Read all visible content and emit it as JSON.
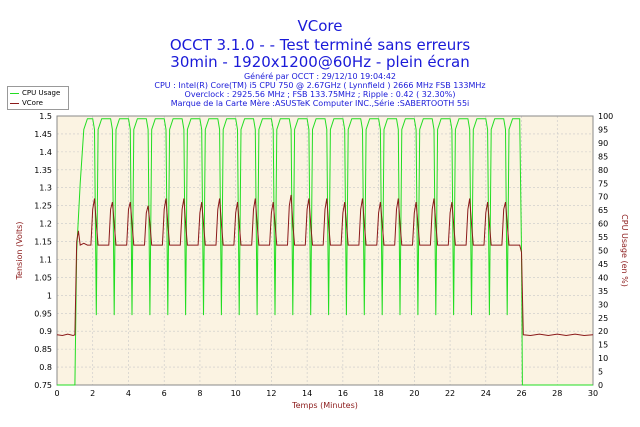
{
  "header": {
    "title": "VCore",
    "subtitle1": "OCCT 3.1.0 -  - Test terminé sans erreurs",
    "subtitle2": "30min - 1920x1200@60Hz - plein écran",
    "info": [
      "Généré par OCCT : 29/12/10 19:04:42",
      "CPU : Intel(R) Core(TM) i5 CPU 750 @ 2.67GHz ( Lynnfield ) 2666 MHz FSB 133MHz",
      "Overclock : 2925.56 MHz ; FSB 133.75MHz ; Ripple : 0.42 ( 32.30%)",
      "Marque de la Carte Mère :ASUSTeK Computer INC.,Série :SABERTOOTH 55i"
    ]
  },
  "colors": {
    "cpu": "#22dd22",
    "vcore": "#8b1a1a",
    "title": "#1a1ad8",
    "plot_bg": "#fbf3e2",
    "grid": "#c8c8c8"
  },
  "chart_data": {
    "type": "line",
    "xlabel": "Temps (Minutes)",
    "ylabel_left": "Tension (Volts)",
    "ylabel_right": "CPU Usage (en %)",
    "xlim": [
      0,
      30
    ],
    "ylim_left": [
      0.75,
      1.5
    ],
    "ylim_right": [
      0,
      100
    ],
    "x_ticks": [
      "0",
      "2",
      "4",
      "6",
      "8",
      "10",
      "12",
      "14",
      "16",
      "18",
      "20",
      "22",
      "24",
      "26",
      "28",
      "30"
    ],
    "y_ticks_left": [
      "0.75",
      "0.8",
      "0.85",
      "0.9",
      "0.95",
      "1",
      "1.05",
      "1.1",
      "1.15",
      "1.2",
      "1.25",
      "1.3",
      "1.35",
      "1.4",
      "1.45",
      "1.5"
    ],
    "y_ticks_right": [
      "0",
      "5",
      "10",
      "15",
      "20",
      "25",
      "30",
      "35",
      "40",
      "45",
      "50",
      "55",
      "60",
      "65",
      "70",
      "75",
      "80",
      "85",
      "90",
      "95",
      "100"
    ],
    "grid": true,
    "legend": {
      "position": "top-left",
      "entries": [
        "CPU Usage",
        "VCore"
      ]
    },
    "series": [
      {
        "name": "CPU Usage",
        "axis": "right",
        "points": [
          [
            0.0,
            0
          ],
          [
            1.0,
            0
          ],
          [
            1.1,
            50
          ],
          [
            1.3,
            75
          ],
          [
            1.5,
            95
          ],
          [
            1.7,
            99
          ],
          [
            2.0,
            99
          ],
          [
            2.1,
            95
          ],
          [
            2.2,
            26
          ],
          [
            2.3,
            95
          ],
          [
            2.5,
            99
          ],
          [
            3.0,
            99
          ],
          [
            3.1,
            95
          ],
          [
            3.2,
            26
          ],
          [
            3.3,
            95
          ],
          [
            3.5,
            99
          ],
          [
            4.0,
            99
          ],
          [
            4.1,
            95
          ],
          [
            4.2,
            26
          ],
          [
            4.3,
            95
          ],
          [
            4.5,
            99
          ],
          [
            5.0,
            99
          ],
          [
            5.1,
            95
          ],
          [
            5.2,
            26
          ],
          [
            5.3,
            95
          ],
          [
            5.5,
            99
          ],
          [
            6.0,
            99
          ],
          [
            6.1,
            95
          ],
          [
            6.2,
            26
          ],
          [
            6.3,
            95
          ],
          [
            6.5,
            99
          ],
          [
            7.0,
            99
          ],
          [
            7.1,
            95
          ],
          [
            7.2,
            26
          ],
          [
            7.3,
            95
          ],
          [
            7.5,
            99
          ],
          [
            8.0,
            99
          ],
          [
            8.1,
            95
          ],
          [
            8.2,
            26
          ],
          [
            8.3,
            95
          ],
          [
            8.5,
            99
          ],
          [
            9.0,
            99
          ],
          [
            9.1,
            95
          ],
          [
            9.2,
            26
          ],
          [
            9.3,
            95
          ],
          [
            9.5,
            99
          ],
          [
            10.0,
            99
          ],
          [
            10.1,
            95
          ],
          [
            10.2,
            26
          ],
          [
            10.3,
            95
          ],
          [
            10.5,
            99
          ],
          [
            11.0,
            99
          ],
          [
            11.1,
            95
          ],
          [
            11.2,
            26
          ],
          [
            11.3,
            95
          ],
          [
            11.5,
            99
          ],
          [
            12.0,
            99
          ],
          [
            12.1,
            95
          ],
          [
            12.2,
            26
          ],
          [
            12.3,
            95
          ],
          [
            12.5,
            99
          ],
          [
            13.0,
            99
          ],
          [
            13.1,
            95
          ],
          [
            13.2,
            26
          ],
          [
            13.3,
            95
          ],
          [
            13.5,
            99
          ],
          [
            14.0,
            99
          ],
          [
            14.1,
            95
          ],
          [
            14.2,
            26
          ],
          [
            14.3,
            95
          ],
          [
            14.5,
            99
          ],
          [
            15.0,
            99
          ],
          [
            15.1,
            95
          ],
          [
            15.2,
            26
          ],
          [
            15.3,
            95
          ],
          [
            15.5,
            99
          ],
          [
            16.0,
            99
          ],
          [
            16.1,
            95
          ],
          [
            16.2,
            26
          ],
          [
            16.3,
            95
          ],
          [
            16.5,
            99
          ],
          [
            17.0,
            99
          ],
          [
            17.1,
            95
          ],
          [
            17.2,
            26
          ],
          [
            17.3,
            95
          ],
          [
            17.5,
            99
          ],
          [
            18.0,
            99
          ],
          [
            18.1,
            95
          ],
          [
            18.2,
            26
          ],
          [
            18.3,
            95
          ],
          [
            18.5,
            99
          ],
          [
            19.0,
            99
          ],
          [
            19.1,
            95
          ],
          [
            19.2,
            26
          ],
          [
            19.3,
            95
          ],
          [
            19.5,
            99
          ],
          [
            20.0,
            99
          ],
          [
            20.1,
            95
          ],
          [
            20.2,
            26
          ],
          [
            20.3,
            95
          ],
          [
            20.5,
            99
          ],
          [
            21.0,
            99
          ],
          [
            21.1,
            95
          ],
          [
            21.2,
            26
          ],
          [
            21.3,
            95
          ],
          [
            21.5,
            99
          ],
          [
            22.0,
            99
          ],
          [
            22.1,
            95
          ],
          [
            22.2,
            26
          ],
          [
            22.3,
            95
          ],
          [
            22.5,
            99
          ],
          [
            23.0,
            99
          ],
          [
            23.1,
            95
          ],
          [
            23.2,
            26
          ],
          [
            23.3,
            95
          ],
          [
            23.5,
            99
          ],
          [
            24.0,
            99
          ],
          [
            24.1,
            95
          ],
          [
            24.2,
            26
          ],
          [
            24.3,
            95
          ],
          [
            24.5,
            99
          ],
          [
            25.0,
            99
          ],
          [
            25.1,
            95
          ],
          [
            25.2,
            26
          ],
          [
            25.3,
            95
          ],
          [
            25.5,
            99
          ],
          [
            25.9,
            99
          ],
          [
            26.0,
            50
          ],
          [
            26.05,
            0
          ],
          [
            30.0,
            0
          ]
        ]
      },
      {
        "name": "VCore",
        "axis": "left",
        "points": [
          [
            0.0,
            0.89
          ],
          [
            0.3,
            0.888
          ],
          [
            0.6,
            0.892
          ],
          [
            0.9,
            0.888
          ],
          [
            1.0,
            0.89
          ],
          [
            1.1,
            1.15
          ],
          [
            1.2,
            1.18
          ],
          [
            1.3,
            1.14
          ],
          [
            1.5,
            1.145
          ],
          [
            1.7,
            1.14
          ],
          [
            1.9,
            1.14
          ],
          [
            2.0,
            1.24
          ],
          [
            2.1,
            1.27
          ],
          [
            2.2,
            1.2
          ],
          [
            2.3,
            1.14
          ],
          [
            2.9,
            1.14
          ],
          [
            3.0,
            1.24
          ],
          [
            3.1,
            1.26
          ],
          [
            3.2,
            1.2
          ],
          [
            3.3,
            1.14
          ],
          [
            3.9,
            1.14
          ],
          [
            4.0,
            1.24
          ],
          [
            4.1,
            1.26
          ],
          [
            4.2,
            1.2
          ],
          [
            4.3,
            1.14
          ],
          [
            4.9,
            1.14
          ],
          [
            5.0,
            1.23
          ],
          [
            5.1,
            1.25
          ],
          [
            5.2,
            1.2
          ],
          [
            5.3,
            1.14
          ],
          [
            5.9,
            1.14
          ],
          [
            6.0,
            1.24
          ],
          [
            6.1,
            1.27
          ],
          [
            6.2,
            1.2
          ],
          [
            6.3,
            1.14
          ],
          [
            6.9,
            1.14
          ],
          [
            7.0,
            1.24
          ],
          [
            7.1,
            1.27
          ],
          [
            7.2,
            1.2
          ],
          [
            7.3,
            1.14
          ],
          [
            7.9,
            1.14
          ],
          [
            8.0,
            1.23
          ],
          [
            8.1,
            1.26
          ],
          [
            8.2,
            1.2
          ],
          [
            8.3,
            1.14
          ],
          [
            8.9,
            1.14
          ],
          [
            9.0,
            1.24
          ],
          [
            9.1,
            1.27
          ],
          [
            9.2,
            1.2
          ],
          [
            9.3,
            1.14
          ],
          [
            9.9,
            1.14
          ],
          [
            10.0,
            1.23
          ],
          [
            10.1,
            1.26
          ],
          [
            10.2,
            1.2
          ],
          [
            10.3,
            1.14
          ],
          [
            10.9,
            1.14
          ],
          [
            11.0,
            1.24
          ],
          [
            11.1,
            1.27
          ],
          [
            11.2,
            1.2
          ],
          [
            11.3,
            1.14
          ],
          [
            11.9,
            1.14
          ],
          [
            12.0,
            1.23
          ],
          [
            12.1,
            1.26
          ],
          [
            12.2,
            1.2
          ],
          [
            12.3,
            1.14
          ],
          [
            12.9,
            1.14
          ],
          [
            13.0,
            1.25
          ],
          [
            13.1,
            1.28
          ],
          [
            13.2,
            1.2
          ],
          [
            13.3,
            1.14
          ],
          [
            13.9,
            1.14
          ],
          [
            14.0,
            1.24
          ],
          [
            14.1,
            1.27
          ],
          [
            14.2,
            1.2
          ],
          [
            14.3,
            1.14
          ],
          [
            14.9,
            1.14
          ],
          [
            15.0,
            1.24
          ],
          [
            15.1,
            1.27
          ],
          [
            15.2,
            1.2
          ],
          [
            15.3,
            1.14
          ],
          [
            15.9,
            1.14
          ],
          [
            16.0,
            1.23
          ],
          [
            16.1,
            1.26
          ],
          [
            16.2,
            1.2
          ],
          [
            16.3,
            1.14
          ],
          [
            16.9,
            1.14
          ],
          [
            17.0,
            1.24
          ],
          [
            17.1,
            1.27
          ],
          [
            17.2,
            1.2
          ],
          [
            17.3,
            1.14
          ],
          [
            17.9,
            1.14
          ],
          [
            18.0,
            1.23
          ],
          [
            18.1,
            1.26
          ],
          [
            18.2,
            1.2
          ],
          [
            18.3,
            1.14
          ],
          [
            18.9,
            1.14
          ],
          [
            19.0,
            1.24
          ],
          [
            19.1,
            1.27
          ],
          [
            19.2,
            1.2
          ],
          [
            19.3,
            1.14
          ],
          [
            19.9,
            1.14
          ],
          [
            20.0,
            1.23
          ],
          [
            20.1,
            1.26
          ],
          [
            20.2,
            1.2
          ],
          [
            20.3,
            1.14
          ],
          [
            20.9,
            1.14
          ],
          [
            21.0,
            1.24
          ],
          [
            21.1,
            1.27
          ],
          [
            21.2,
            1.2
          ],
          [
            21.3,
            1.14
          ],
          [
            21.9,
            1.14
          ],
          [
            22.0,
            1.23
          ],
          [
            22.1,
            1.26
          ],
          [
            22.2,
            1.2
          ],
          [
            22.3,
            1.14
          ],
          [
            22.9,
            1.14
          ],
          [
            23.0,
            1.24
          ],
          [
            23.1,
            1.27
          ],
          [
            23.2,
            1.2
          ],
          [
            23.3,
            1.14
          ],
          [
            23.9,
            1.14
          ],
          [
            24.0,
            1.23
          ],
          [
            24.1,
            1.26
          ],
          [
            24.2,
            1.2
          ],
          [
            24.3,
            1.14
          ],
          [
            24.9,
            1.14
          ],
          [
            25.0,
            1.24
          ],
          [
            25.1,
            1.26
          ],
          [
            25.2,
            1.2
          ],
          [
            25.3,
            1.14
          ],
          [
            25.9,
            1.14
          ],
          [
            26.0,
            1.12
          ],
          [
            26.1,
            0.89
          ],
          [
            26.5,
            0.888
          ],
          [
            27.0,
            0.892
          ],
          [
            27.5,
            0.888
          ],
          [
            28.0,
            0.892
          ],
          [
            28.5,
            0.888
          ],
          [
            29.0,
            0.892
          ],
          [
            29.5,
            0.888
          ],
          [
            30.0,
            0.89
          ]
        ]
      }
    ]
  }
}
